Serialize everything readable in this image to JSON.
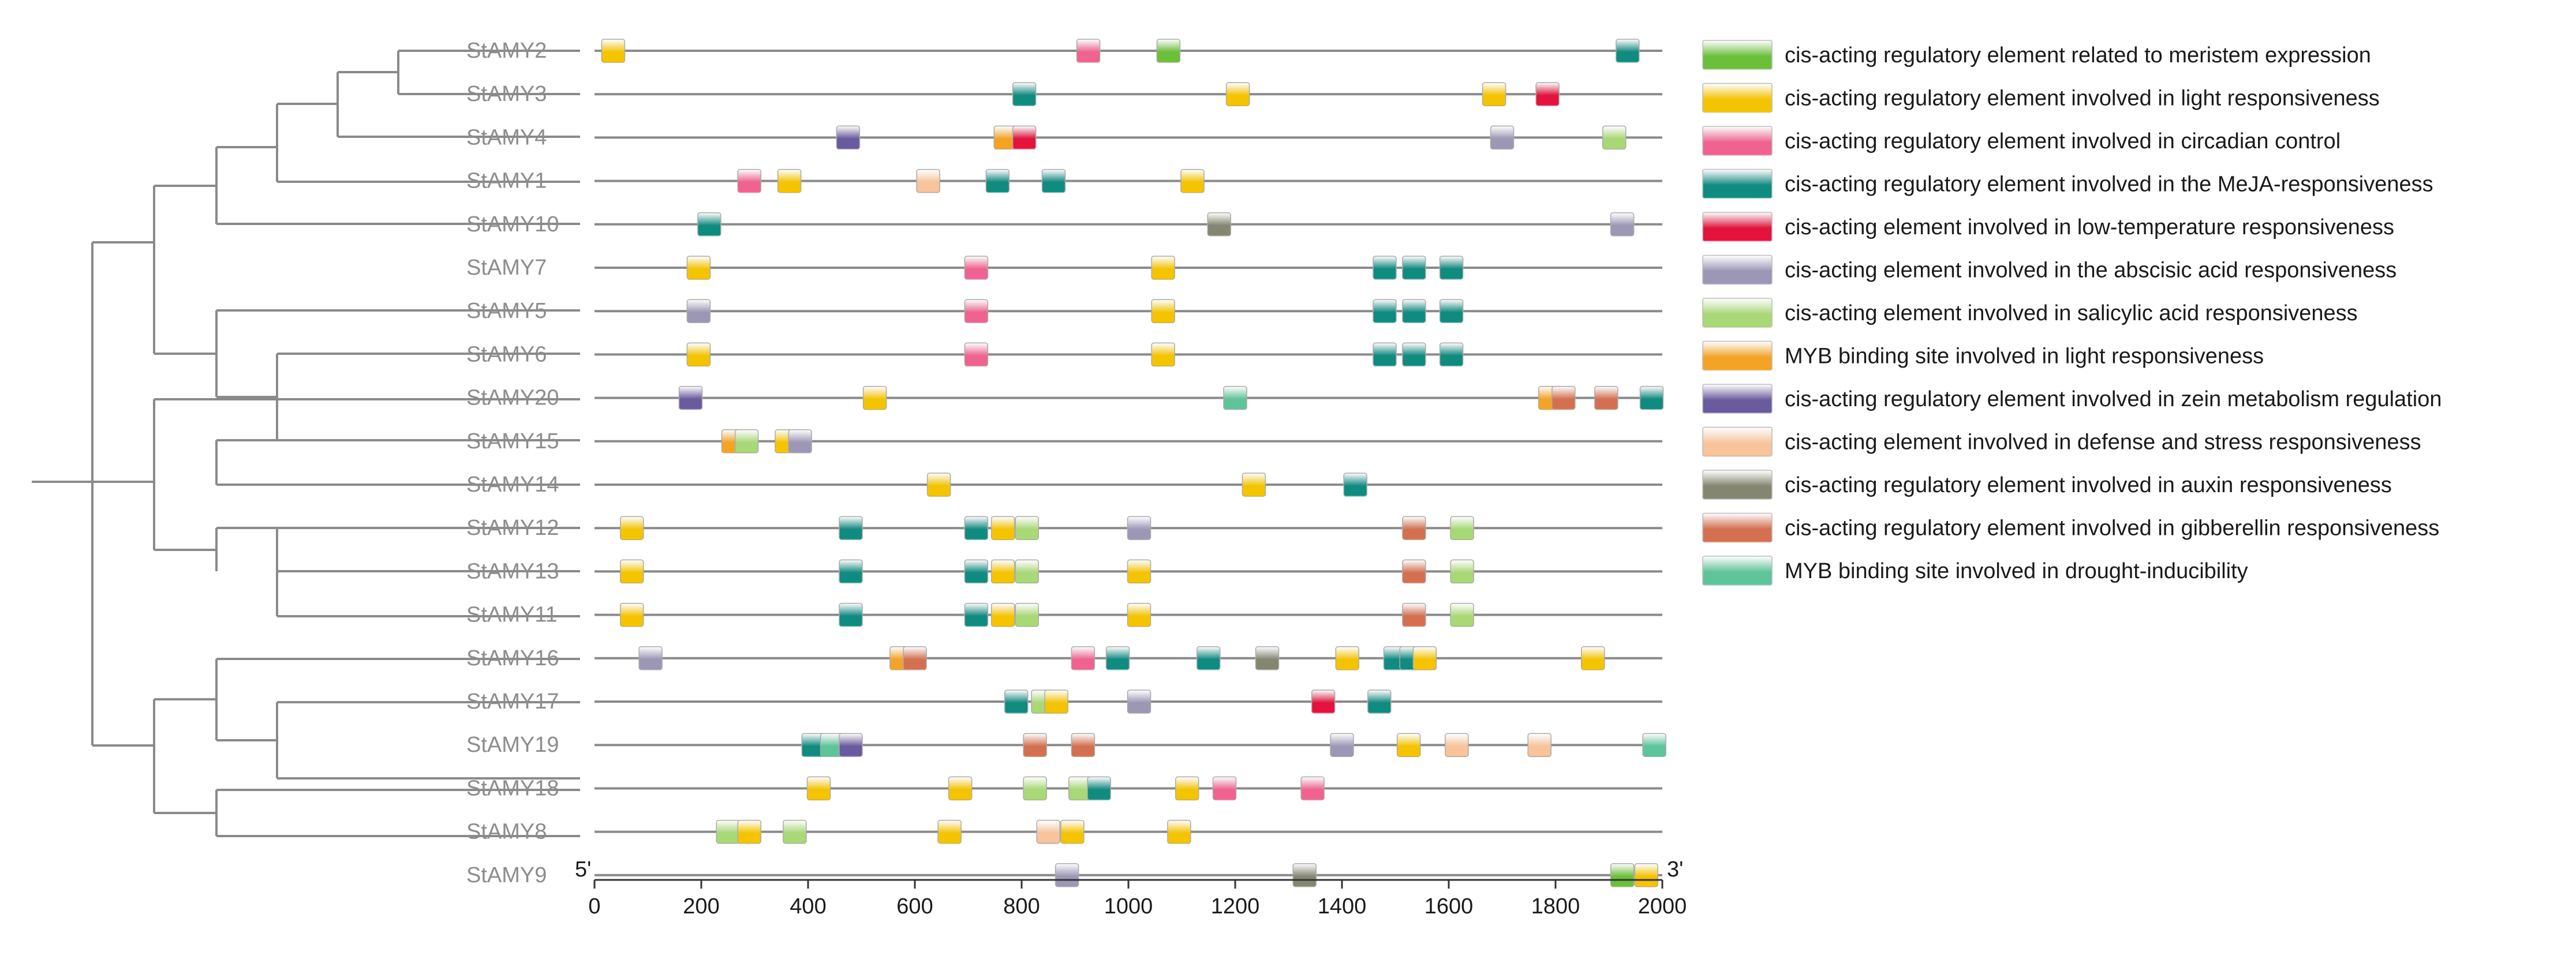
{
  "chart_data": {
    "type": "promoter-element-map",
    "x_axis": {
      "min": 0,
      "max": 2000,
      "ticks": [
        0,
        200,
        400,
        600,
        800,
        1000,
        1200,
        1400,
        1600,
        1800,
        2000
      ],
      "left_end_label": "5'",
      "right_end_label": "3'"
    },
    "legend": [
      {
        "id": "meristem",
        "label": "cis-acting regulatory element related to meristem expression",
        "color": "#6cbf3a"
      },
      {
        "id": "light",
        "label": "cis-acting regulatory element involved in light responsiveness",
        "color": "#f5c400"
      },
      {
        "id": "circadian",
        "label": "cis-acting regulatory element involved in circadian control",
        "color": "#f0628f"
      },
      {
        "id": "meja",
        "label": "cis-acting regulatory element involved in the MeJA-responsiveness",
        "color": "#0f8b80"
      },
      {
        "id": "lowtemp",
        "label": "cis-acting element involved in low-temperature responsiveness",
        "color": "#e3133d"
      },
      {
        "id": "aba",
        "label": "cis-acting element involved in the abscisic acid responsiveness",
        "color": "#9c97b5"
      },
      {
        "id": "salicylic",
        "label": "cis-acting element involved in salicylic acid responsiveness",
        "color": "#a9d876"
      },
      {
        "id": "myb_light",
        "label": "MYB binding site involved in light responsiveness",
        "color": "#f5a325"
      },
      {
        "id": "zein",
        "label": "cis-acting regulatory element involved in zein metabolism regulation",
        "color": "#6a5a9e"
      },
      {
        "id": "defense",
        "label": "cis-acting element involved in defense and stress responsiveness",
        "color": "#f7c49b"
      },
      {
        "id": "auxin",
        "label": "cis-acting regulatory element involved in auxin responsiveness",
        "color": "#858670"
      },
      {
        "id": "gibberellin",
        "label": "cis-acting regulatory element involved in  gibberellin responsiveness",
        "color": "#d4704f"
      },
      {
        "id": "myb_drought",
        "label": "MYB binding site involved in drought-inducibility",
        "color": "#5ec49a"
      }
    ],
    "genes": [
      {
        "name": "StAMY2",
        "elements": [
          [
            "light",
            35
          ],
          [
            "circadian",
            925
          ],
          [
            "meristem",
            1075
          ],
          [
            "meja",
            1935
          ]
        ]
      },
      {
        "name": "StAMY3",
        "elements": [
          [
            "meja",
            805
          ],
          [
            "light",
            1205
          ],
          [
            "light",
            1685
          ],
          [
            "lowtemp",
            1785
          ]
        ]
      },
      {
        "name": "StAMY4",
        "elements": [
          [
            "zein",
            475
          ],
          [
            "myb_light",
            770
          ],
          [
            "lowtemp",
            805
          ],
          [
            "aba",
            1700
          ],
          [
            "salicylic",
            1910
          ]
        ]
      },
      {
        "name": "StAMY1",
        "elements": [
          [
            "circadian",
            290
          ],
          [
            "light",
            365
          ],
          [
            "defense",
            625
          ],
          [
            "meja",
            755
          ],
          [
            "meja",
            860
          ],
          [
            "light",
            1120
          ]
        ]
      },
      {
        "name": "StAMY10",
        "elements": [
          [
            "meja",
            215
          ],
          [
            "auxin",
            1170
          ],
          [
            "aba",
            1925
          ]
        ]
      },
      {
        "name": "StAMY7",
        "elements": [
          [
            "light",
            195
          ],
          [
            "circadian",
            715
          ],
          [
            "light",
            1065
          ],
          [
            "meja",
            1480
          ],
          [
            "meja",
            1535
          ],
          [
            "meja",
            1605
          ]
        ]
      },
      {
        "name": "StAMY5",
        "elements": [
          [
            "aba",
            195
          ],
          [
            "circadian",
            715
          ],
          [
            "light",
            1065
          ],
          [
            "meja",
            1480
          ],
          [
            "meja",
            1535
          ],
          [
            "meja",
            1605
          ]
        ]
      },
      {
        "name": "StAMY6",
        "elements": [
          [
            "light",
            195
          ],
          [
            "circadian",
            715
          ],
          [
            "light",
            1065
          ],
          [
            "meja",
            1480
          ],
          [
            "meja",
            1535
          ],
          [
            "meja",
            1605
          ]
        ]
      },
      {
        "name": "StAMY20",
        "elements": [
          [
            "zein",
            180
          ],
          [
            "light",
            525
          ],
          [
            "myb_drought",
            1200
          ],
          [
            "myb_light",
            1790
          ],
          [
            "gibberellin",
            1815
          ],
          [
            "gibberellin",
            1895
          ],
          [
            "meja",
            1980
          ]
        ]
      },
      {
        "name": "StAMY15",
        "elements": [
          [
            "myb_light",
            260
          ],
          [
            "salicylic",
            285
          ],
          [
            "light",
            360
          ],
          [
            "aba",
            385
          ]
        ]
      },
      {
        "name": "StAMY14",
        "elements": [
          [
            "light",
            645
          ],
          [
            "light",
            1235
          ],
          [
            "meja",
            1425
          ]
        ]
      },
      {
        "name": "StAMY12",
        "elements": [
          [
            "light",
            70
          ],
          [
            "meja",
            480
          ],
          [
            "meja",
            715
          ],
          [
            "light",
            765
          ],
          [
            "salicylic",
            810
          ],
          [
            "aba",
            1020
          ],
          [
            "gibberellin",
            1535
          ],
          [
            "salicylic",
            1625
          ]
        ]
      },
      {
        "name": "StAMY13",
        "elements": [
          [
            "light",
            70
          ],
          [
            "meja",
            480
          ],
          [
            "meja",
            715
          ],
          [
            "light",
            765
          ],
          [
            "salicylic",
            810
          ],
          [
            "light",
            1020
          ],
          [
            "gibberellin",
            1535
          ],
          [
            "salicylic",
            1625
          ]
        ]
      },
      {
        "name": "StAMY11",
        "elements": [
          [
            "light",
            70
          ],
          [
            "meja",
            480
          ],
          [
            "meja",
            715
          ],
          [
            "light",
            765
          ],
          [
            "salicylic",
            810
          ],
          [
            "light",
            1020
          ],
          [
            "gibberellin",
            1535
          ],
          [
            "salicylic",
            1625
          ]
        ]
      },
      {
        "name": "StAMY16",
        "elements": [
          [
            "aba",
            105
          ],
          [
            "myb_light",
            575
          ],
          [
            "gibberellin",
            600
          ],
          [
            "circadian",
            915
          ],
          [
            "meja",
            980
          ],
          [
            "meja",
            1150
          ],
          [
            "auxin",
            1260
          ],
          [
            "light",
            1410
          ],
          [
            "meja",
            1500
          ],
          [
            "meja",
            1530
          ],
          [
            "light",
            1555
          ],
          [
            "light",
            1870
          ]
        ]
      },
      {
        "name": "StAMY17",
        "elements": [
          [
            "meja",
            790
          ],
          [
            "salicylic",
            840
          ],
          [
            "light",
            865
          ],
          [
            "aba",
            1020
          ],
          [
            "lowtemp",
            1365
          ],
          [
            "meja",
            1470
          ]
        ]
      },
      {
        "name": "StAMY19",
        "elements": [
          [
            "meja",
            410
          ],
          [
            "myb_drought",
            445
          ],
          [
            "zein",
            480
          ],
          [
            "gibberellin",
            825
          ],
          [
            "gibberellin",
            915
          ],
          [
            "aba",
            1400
          ],
          [
            "light",
            1525
          ],
          [
            "defense",
            1615
          ],
          [
            "defense",
            1770
          ],
          [
            "myb_drought",
            1985
          ]
        ]
      },
      {
        "name": "StAMY18",
        "elements": [
          [
            "light",
            420
          ],
          [
            "light",
            685
          ],
          [
            "salicylic",
            825
          ],
          [
            "salicylic",
            910
          ],
          [
            "meja",
            945
          ],
          [
            "light",
            1110
          ],
          [
            "circadian",
            1180
          ],
          [
            "circadian",
            1345
          ]
        ]
      },
      {
        "name": "StAMY8",
        "elements": [
          [
            "salicylic",
            250
          ],
          [
            "light",
            290
          ],
          [
            "salicylic",
            375
          ],
          [
            "light",
            665
          ],
          [
            "defense",
            850
          ],
          [
            "light",
            895
          ],
          [
            "light",
            1095
          ]
        ]
      },
      {
        "name": "StAMY9",
        "elements": [
          [
            "aba",
            885
          ],
          [
            "auxin",
            1330
          ],
          [
            "meristem",
            1925
          ],
          [
            "light",
            1970
          ]
        ]
      }
    ]
  }
}
